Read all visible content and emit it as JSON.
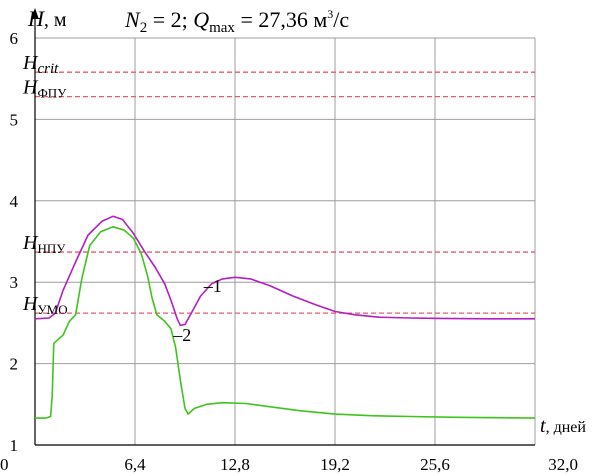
{
  "chart_data": {
    "type": "line",
    "title_parts": {
      "n_var": "N",
      "n_sub": "2",
      "n_value": " = 2; ",
      "q_var": "Q",
      "q_sub": "max",
      "q_value": " = 27,36 м",
      "q_sup": "3",
      "q_unit": "/с"
    },
    "y_axis": {
      "var": "H",
      "unit": ", м"
    },
    "x_axis": {
      "var": "t",
      "unit": ", дней"
    },
    "xlim": [
      0,
      32
    ],
    "ylim": [
      1,
      6
    ],
    "x_ticks": [
      {
        "value": 0,
        "label": "0"
      },
      {
        "value": 6.4,
        "label": "6,4"
      },
      {
        "value": 12.8,
        "label": "12,8"
      },
      {
        "value": 19.2,
        "label": "19,2"
      },
      {
        "value": 25.6,
        "label": "25,6"
      },
      {
        "value": 32,
        "label": "32,0"
      }
    ],
    "y_ticks": [
      {
        "value": 1,
        "label": "1"
      },
      {
        "value": 2,
        "label": "2"
      },
      {
        "value": 3,
        "label": "3"
      },
      {
        "value": 4,
        "label": "4"
      },
      {
        "value": 5,
        "label": "5"
      },
      {
        "value": 6,
        "label": "6"
      }
    ],
    "grid": true,
    "reference_lines": [
      {
        "key": "crit",
        "y": 5.58,
        "main": "H",
        "sub": "crit",
        "sub_italic": true,
        "color": "#e35d6a"
      },
      {
        "key": "fpu",
        "y": 5.28,
        "main": "H",
        "sub": "ФПУ",
        "sub_italic": false,
        "color": "#e35d6a"
      },
      {
        "key": "npu",
        "y": 3.37,
        "main": "H",
        "sub": "НПУ",
        "sub_italic": false,
        "color": "#e35d6a"
      },
      {
        "key": "umo",
        "y": 2.62,
        "main": "H",
        "sub": "УМО",
        "sub_italic": false,
        "color": "#e35d6a"
      }
    ],
    "series": [
      {
        "name": "1",
        "label": "–1",
        "color": "#b21fc2",
        "points": [
          [
            0.0,
            2.55
          ],
          [
            0.9,
            2.56
          ],
          [
            1.3,
            2.62
          ],
          [
            1.8,
            2.9
          ],
          [
            2.6,
            3.25
          ],
          [
            3.4,
            3.58
          ],
          [
            4.3,
            3.75
          ],
          [
            5.0,
            3.81
          ],
          [
            5.6,
            3.77
          ],
          [
            6.3,
            3.6
          ],
          [
            7.0,
            3.38
          ],
          [
            7.7,
            3.18
          ],
          [
            8.3,
            2.98
          ],
          [
            8.7,
            2.78
          ],
          [
            9.1,
            2.55
          ],
          [
            9.3,
            2.47
          ],
          [
            9.6,
            2.48
          ],
          [
            10.0,
            2.62
          ],
          [
            10.6,
            2.83
          ],
          [
            11.3,
            2.98
          ],
          [
            12.0,
            3.04
          ],
          [
            12.8,
            3.06
          ],
          [
            13.8,
            3.04
          ],
          [
            15.0,
            2.96
          ],
          [
            16.5,
            2.83
          ],
          [
            18.0,
            2.72
          ],
          [
            19.2,
            2.64
          ],
          [
            20.5,
            2.6
          ],
          [
            22.0,
            2.57
          ],
          [
            24.0,
            2.56
          ],
          [
            26.0,
            2.555
          ],
          [
            29.0,
            2.55
          ],
          [
            32.0,
            2.55
          ]
        ],
        "label_at": [
          10.8,
          2.88
        ]
      },
      {
        "name": "2",
        "label": "–2",
        "color": "#3ec41d",
        "points": [
          [
            0.0,
            1.33
          ],
          [
            0.7,
            1.33
          ],
          [
            1.0,
            1.35
          ],
          [
            1.1,
            1.6
          ],
          [
            1.2,
            2.25
          ],
          [
            1.5,
            2.3
          ],
          [
            1.8,
            2.35
          ],
          [
            2.2,
            2.52
          ],
          [
            2.6,
            2.6
          ],
          [
            3.0,
            3.05
          ],
          [
            3.5,
            3.45
          ],
          [
            4.2,
            3.62
          ],
          [
            5.0,
            3.68
          ],
          [
            5.7,
            3.64
          ],
          [
            6.3,
            3.54
          ],
          [
            6.8,
            3.35
          ],
          [
            7.2,
            3.08
          ],
          [
            7.5,
            2.8
          ],
          [
            7.8,
            2.6
          ],
          [
            8.3,
            2.52
          ],
          [
            8.7,
            2.43
          ],
          [
            9.0,
            2.2
          ],
          [
            9.3,
            1.8
          ],
          [
            9.6,
            1.45
          ],
          [
            9.8,
            1.38
          ],
          [
            10.2,
            1.45
          ],
          [
            11.0,
            1.5
          ],
          [
            12.0,
            1.52
          ],
          [
            13.5,
            1.51
          ],
          [
            15.0,
            1.47
          ],
          [
            17.0,
            1.42
          ],
          [
            19.2,
            1.38
          ],
          [
            21.5,
            1.36
          ],
          [
            24.0,
            1.35
          ],
          [
            27.0,
            1.34
          ],
          [
            32.0,
            1.33
          ]
        ],
        "label_at": [
          8.85,
          2.28
        ]
      }
    ]
  }
}
